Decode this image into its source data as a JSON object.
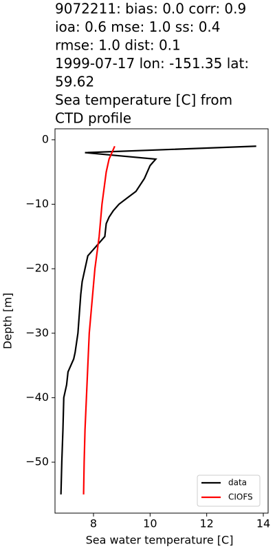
{
  "chart_data": {
    "type": "line",
    "title": [
      "9072211: bias: 0.0  corr: 0.9",
      " ioa: 0.6  mse: 1.0  ss: 0.4",
      "rmse: 1.0  dist: 0.1",
      "1999-07-17 lon: -151.35 lat:",
      "59.62",
      "Sea temperature [C] from",
      "CTD profile"
    ],
    "x_label": "Sea water temperature [C]",
    "y_label": "Depth [m]",
    "xlim": [
      6.64,
      14.17
    ],
    "ylim": [
      -57.9,
      1.7
    ],
    "xticks": [
      8,
      10,
      12,
      14
    ],
    "yticks": [
      {
        "value": 0,
        "label": "0"
      },
      {
        "value": -10,
        "label": "−10"
      },
      {
        "value": -20,
        "label": "−20"
      },
      {
        "value": -30,
        "label": "−30"
      },
      {
        "value": -40,
        "label": "−40"
      },
      {
        "value": -50,
        "label": "−50"
      }
    ],
    "legend": "lower right",
    "series": [
      {
        "name": "data",
        "color": "#000000",
        "x": [
          13.75,
          7.7,
          10.2,
          10.0,
          9.8,
          9.5,
          9.2,
          8.9,
          8.7,
          8.55,
          8.45,
          8.4,
          8.2,
          8.0,
          7.8,
          7.7,
          7.6,
          7.55,
          7.5,
          7.45,
          7.35,
          7.3,
          7.1,
          7.05,
          6.95,
          6.92,
          6.88,
          6.85
        ],
        "y": [
          -1,
          -2,
          -3,
          -4,
          -6,
          -8,
          -9,
          -10,
          -11,
          -12,
          -13,
          -15,
          -16,
          -17,
          -18,
          -20,
          -22,
          -24,
          -27,
          -30,
          -33,
          -34,
          -36,
          -38,
          -40,
          -45,
          -50,
          -55
        ]
      },
      {
        "name": "CIOFS",
        "color": "#ff0000",
        "x": [
          8.75,
          8.65,
          8.55,
          8.45,
          8.3,
          8.2,
          8.05,
          7.95,
          7.85,
          7.8,
          7.75,
          7.7,
          7.67,
          7.65
        ],
        "y": [
          -1,
          -2,
          -3,
          -5,
          -10,
          -15,
          -20,
          -25,
          -30,
          -35,
          -40,
          -45,
          -50,
          -55
        ]
      }
    ]
  }
}
